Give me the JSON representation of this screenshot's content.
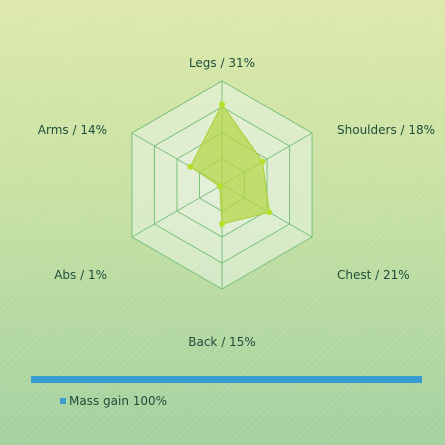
{
  "chart_data": {
    "type": "radar",
    "title": "",
    "categories": [
      "Legs / 31%",
      "Shoulders / 18%",
      "Chest / 21%",
      "Back / 15%",
      "Abs / 1%",
      "Arms / 14%"
    ],
    "series": [
      {
        "name": "Mass gain",
        "values": [
          31,
          18,
          21,
          15,
          1,
          14
        ]
      }
    ],
    "range": [
      0,
      40
    ],
    "rings": 4,
    "grid": true,
    "legend": "bottom-left",
    "colors": {
      "fill": "#b5d74a",
      "stroke": "#a6d033",
      "point": "#b7e02c",
      "grid": "#7cc07d",
      "grid_fill": "#eaf4e6",
      "legend_swatch": "#3a9dd2"
    }
  },
  "legend": {
    "label": "Mass gain 100%"
  }
}
